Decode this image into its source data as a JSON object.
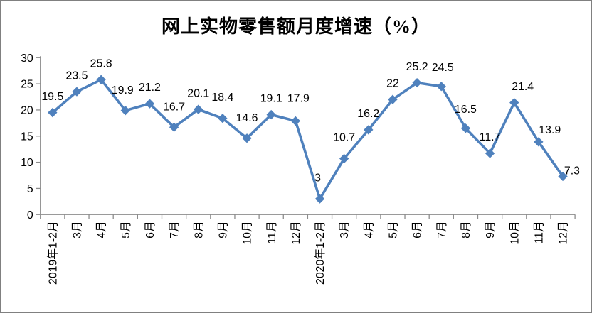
{
  "window": {
    "background_color": "#FFFFFF",
    "border_color": "#808080"
  },
  "chart_data": {
    "type": "line",
    "title": "网上实物零售额月度增速（%）",
    "categories": [
      "2019年1-2月",
      "3月",
      "4月",
      "5月",
      "6月",
      "7月",
      "8月",
      "9月",
      "10月",
      "11月",
      "12月",
      "2020年1-2月",
      "3月",
      "4月",
      "5月",
      "6月",
      "7月",
      "8月",
      "9月",
      "10月",
      "11月",
      "12月"
    ],
    "values": [
      19.5,
      23.5,
      25.8,
      19.9,
      21.2,
      16.7,
      20.1,
      18.4,
      14.6,
      19.1,
      17.9,
      3,
      10.7,
      16.2,
      22,
      25.2,
      24.5,
      16.5,
      11.7,
      21.4,
      13.9,
      7.3
    ],
    "xlabel": "",
    "ylabel": "",
    "ylim": [
      0,
      30
    ],
    "yticks": [
      0,
      5,
      10,
      15,
      20,
      25,
      30
    ],
    "grid": false,
    "legend": "none",
    "data_labels_visible": true,
    "marker": "diamond",
    "line_color": "#4F81BD",
    "marker_color": "#4F81BD",
    "axis_color": "#8C8C8C",
    "label_color": "#000000",
    "label_offsets": {
      "3": [
        -4,
        -6
      ],
      "5": [
        0,
        -6
      ],
      "7": [
        0,
        -7
      ],
      "8": [
        0,
        -6
      ],
      "10": [
        4,
        -9
      ],
      "11": [
        -3,
        -7
      ],
      "12": [
        0,
        -7
      ],
      "16": [
        2,
        -4
      ],
      "17": [
        0,
        -4
      ],
      "19": [
        12,
        0
      ],
      "20": [
        16,
        6
      ],
      "21": [
        13,
        15
      ]
    }
  }
}
